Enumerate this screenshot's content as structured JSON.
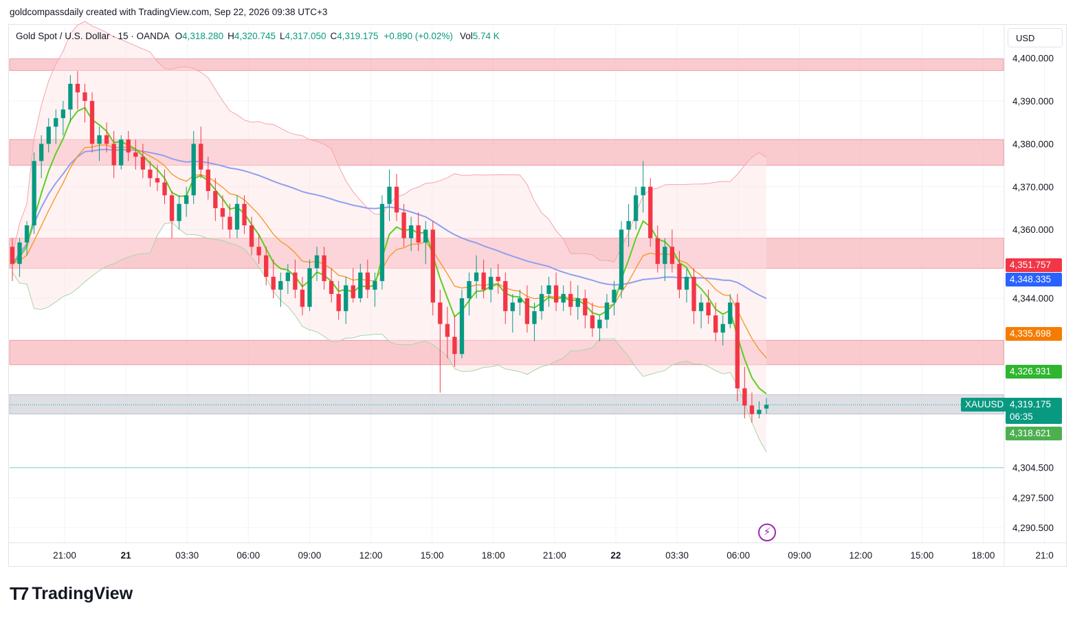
{
  "header": {
    "caption": "goldcompassdaily created with TradingView.com, Sep 22, 2026 09:38 UTC+3"
  },
  "legend": {
    "symbol": "Gold Spot / U.S. Dollar · 15 · OANDA",
    "open_label": "O",
    "open": "4,318.280",
    "high_label": "H",
    "high": "4,320.745",
    "low_label": "L",
    "low": "4,317.050",
    "close_label": "C",
    "close": "4,319.175",
    "change": "+0.890 (+0.02%)",
    "vol_label": "Vol",
    "vol": "5.74 K"
  },
  "currency_button": "USD",
  "footer": {
    "brand": "TradingView"
  },
  "icons": {
    "logo": "tradingview-logo-icon",
    "lightning": "lightning-icon"
  },
  "colors": {
    "up": "#089981",
    "down": "#f23645",
    "ema_fast": "#5ad01b",
    "ema_slow": "#f7931a",
    "sma": "#8f9ff0",
    "zone": "#f7b5bb",
    "price_tag": "#089981"
  },
  "chart_data": {
    "type": "candlestick",
    "timeframe": "15",
    "x_ticks": [
      "21:00",
      "21",
      "03:30",
      "06:00",
      "09:00",
      "12:00",
      "15:00",
      "18:00",
      "21:00",
      "22",
      "03:30",
      "06:00",
      "09:00",
      "12:00",
      "15:00",
      "18:00",
      "21:0"
    ],
    "y_ticks": [
      "4,400.000",
      "4,390.000",
      "4,380.000",
      "4,370.000",
      "4,360.000",
      "4,344.000",
      "4,304.500",
      "4,297.500",
      "4,290.500"
    ],
    "ylim": [
      4287,
      4402
    ],
    "resistance_zones": [
      {
        "low": 4397.1,
        "high": 4399.8
      },
      {
        "low": 4375.0,
        "high": 4381.0
      },
      {
        "low": 4351.0,
        "high": 4358.0
      },
      {
        "low": 4328.5,
        "high": 4334.2
      },
      {
        "low": 4317.0,
        "high": 4321.5
      }
    ],
    "horizontal_line": 4304.5,
    "price_tags": [
      {
        "value": 4351.757,
        "label": "4,351.757",
        "color": "#f23645"
      },
      {
        "value": 4348.335,
        "label": "4,348.335",
        "color": "#2962ff"
      },
      {
        "value": 4335.698,
        "label": "4,335.698",
        "color": "#f57c00"
      },
      {
        "value": 4326.931,
        "label": "4,326.931",
        "color": "#2fb52f"
      },
      {
        "value": 4319.175,
        "label": "4,319.175",
        "color": "#089981",
        "symbol": "XAUUSD",
        "countdown": "06:35"
      },
      {
        "value": 4318.621,
        "label": "4,318.621",
        "color": "#4caf50"
      }
    ],
    "candles": [
      [
        4356.0,
        4358.0,
        4348.0,
        4352.0
      ],
      [
        4352.0,
        4358.0,
        4349.0,
        4357.0
      ],
      [
        4357.0,
        4362.0,
        4354.0,
        4361.0
      ],
      [
        4361.0,
        4378.0,
        4359.0,
        4376.0
      ],
      [
        4376.0,
        4382.0,
        4372.0,
        4380.0
      ],
      [
        4380.0,
        4386.0,
        4378.0,
        4384.0
      ],
      [
        4384.0,
        4388.0,
        4380.0,
        4386.0
      ],
      [
        4386.0,
        4390.0,
        4382.0,
        4388.0
      ],
      [
        4388.0,
        4396.0,
        4385.0,
        4394.0
      ],
      [
        4394.0,
        4397.0,
        4388.0,
        4392.0
      ],
      [
        4392.0,
        4394.0,
        4385.0,
        4390.0
      ],
      [
        4390.0,
        4392.0,
        4378.0,
        4380.0
      ],
      [
        4380.0,
        4384.0,
        4376.0,
        4382.0
      ],
      [
        4382.0,
        4385.0,
        4378.0,
        4380.0
      ],
      [
        4380.0,
        4383.0,
        4372.0,
        4375.0
      ],
      [
        4375.0,
        4382.0,
        4374.0,
        4381.0
      ],
      [
        4381.0,
        4383.0,
        4376.0,
        4378.0
      ],
      [
        4378.0,
        4381.0,
        4374.0,
        4377.0
      ],
      [
        4377.0,
        4380.0,
        4372.0,
        4374.0
      ],
      [
        4374.0,
        4376.0,
        4370.0,
        4372.0
      ],
      [
        4372.0,
        4375.0,
        4369.0,
        4371.0
      ],
      [
        4371.0,
        4374.0,
        4366.0,
        4368.0
      ],
      [
        4368.0,
        4369.0,
        4358.0,
        4362.0
      ],
      [
        4362.0,
        4368.0,
        4360.0,
        4366.0
      ],
      [
        4366.0,
        4370.0,
        4363.0,
        4368.0
      ],
      [
        4368.0,
        4383.0,
        4366.0,
        4380.0
      ],
      [
        4380.0,
        4384.0,
        4372.0,
        4374.0
      ],
      [
        4374.0,
        4377.0,
        4367.0,
        4369.0
      ],
      [
        4369.0,
        4372.0,
        4362.0,
        4365.0
      ],
      [
        4365.0,
        4368.0,
        4360.0,
        4363.0
      ],
      [
        4363.0,
        4366.0,
        4358.0,
        4360.0
      ],
      [
        4360.0,
        4368.0,
        4358.0,
        4366.0
      ],
      [
        4366.0,
        4368.0,
        4359.0,
        4361.0
      ],
      [
        4361.0,
        4363.0,
        4354.0,
        4356.0
      ],
      [
        4356.0,
        4359.0,
        4352.0,
        4354.0
      ],
      [
        4354.0,
        4356.0,
        4347.0,
        4349.0
      ],
      [
        4349.0,
        4353.0,
        4344.0,
        4346.0
      ],
      [
        4346.0,
        4350.0,
        4342.0,
        4348.0
      ],
      [
        4348.0,
        4352.0,
        4345.0,
        4350.0
      ],
      [
        4350.0,
        4353.0,
        4344.0,
        4346.0
      ],
      [
        4346.0,
        4349.0,
        4340.0,
        4342.0
      ],
      [
        4342.0,
        4353.0,
        4341.0,
        4351.0
      ],
      [
        4351.0,
        4356.0,
        4348.0,
        4354.0
      ],
      [
        4354.0,
        4356.0,
        4346.0,
        4348.0
      ],
      [
        4348.0,
        4351.0,
        4343.0,
        4345.0
      ],
      [
        4345.0,
        4348.0,
        4339.0,
        4341.0
      ],
      [
        4341.0,
        4349.0,
        4338.0,
        4347.0
      ],
      [
        4347.0,
        4351.0,
        4343.0,
        4344.0
      ],
      [
        4344.0,
        4352.0,
        4343.0,
        4350.0
      ],
      [
        4350.0,
        4353.0,
        4344.0,
        4346.0
      ],
      [
        4346.0,
        4350.0,
        4342.0,
        4348.0
      ],
      [
        4348.0,
        4368.0,
        4346.0,
        4366.0
      ],
      [
        4366.0,
        4374.0,
        4362.0,
        4370.0
      ],
      [
        4370.0,
        4373.0,
        4362.0,
        4364.0
      ],
      [
        4364.0,
        4366.0,
        4356.0,
        4358.0
      ],
      [
        4358.0,
        4363.0,
        4355.0,
        4361.0
      ],
      [
        4361.0,
        4364.0,
        4355.0,
        4357.0
      ],
      [
        4357.0,
        4362.0,
        4352.0,
        4360.0
      ],
      [
        4360.0,
        4362.0,
        4340.0,
        4343.0
      ],
      [
        4343.0,
        4346.0,
        4322.0,
        4338.0
      ],
      [
        4338.0,
        4342.0,
        4330.0,
        4335.0
      ],
      [
        4335.0,
        4340.0,
        4328.0,
        4331.0
      ],
      [
        4331.0,
        4346.0,
        4330.0,
        4344.0
      ],
      [
        4344.0,
        4350.0,
        4340.0,
        4348.0
      ],
      [
        4348.0,
        4354.0,
        4344.0,
        4350.0
      ],
      [
        4350.0,
        4353.0,
        4344.0,
        4346.0
      ],
      [
        4346.0,
        4351.0,
        4343.0,
        4349.0
      ],
      [
        4349.0,
        4352.0,
        4345.0,
        4348.0
      ],
      [
        4348.0,
        4350.0,
        4338.0,
        4341.0
      ],
      [
        4341.0,
        4345.0,
        4336.0,
        4343.0
      ],
      [
        4343.0,
        4346.0,
        4340.0,
        4344.0
      ],
      [
        4344.0,
        4347.0,
        4336.0,
        4338.0
      ],
      [
        4338.0,
        4343.0,
        4334.0,
        4341.0
      ],
      [
        4341.0,
        4347.0,
        4339.0,
        4345.0
      ],
      [
        4345.0,
        4349.0,
        4342.0,
        4347.0
      ],
      [
        4347.0,
        4350.0,
        4341.0,
        4343.0
      ],
      [
        4343.0,
        4347.0,
        4341.0,
        4345.0
      ],
      [
        4345.0,
        4348.0,
        4340.0,
        4342.0
      ],
      [
        4342.0,
        4347.0,
        4339.0,
        4344.0
      ],
      [
        4344.0,
        4346.0,
        4337.0,
        4340.0
      ],
      [
        4340.0,
        4343.0,
        4335.0,
        4337.0
      ],
      [
        4337.0,
        4340.0,
        4334.0,
        4339.0
      ],
      [
        4339.0,
        4345.0,
        4337.0,
        4343.0
      ],
      [
        4343.0,
        4348.0,
        4340.0,
        4346.0
      ],
      [
        4346.0,
        4362.0,
        4344.0,
        4360.0
      ],
      [
        4360.0,
        4366.0,
        4356.0,
        4362.0
      ],
      [
        4362.0,
        4370.0,
        4360.0,
        4368.0
      ],
      [
        4368.0,
        4376.0,
        4364.0,
        4370.0
      ],
      [
        4370.0,
        4372.0,
        4356.0,
        4358.0
      ],
      [
        4358.0,
        4361.0,
        4350.0,
        4352.0
      ],
      [
        4352.0,
        4358.0,
        4348.0,
        4356.0
      ],
      [
        4356.0,
        4360.0,
        4350.0,
        4352.0
      ],
      [
        4352.0,
        4355.0,
        4344.0,
        4346.0
      ],
      [
        4346.0,
        4351.0,
        4343.0,
        4349.0
      ],
      [
        4349.0,
        4351.0,
        4338.0,
        4341.0
      ],
      [
        4341.0,
        4345.0,
        4337.0,
        4343.0
      ],
      [
        4343.0,
        4346.0,
        4338.0,
        4340.0
      ],
      [
        4340.0,
        4343.0,
        4334.0,
        4336.0
      ],
      [
        4336.0,
        4340.0,
        4333.0,
        4338.0
      ],
      [
        4338.0,
        4345.0,
        4337.0,
        4343.0
      ],
      [
        4343.0,
        4345.0,
        4320.0,
        4323.0
      ],
      [
        4323.0,
        4328.0,
        4316.0,
        4319.0
      ],
      [
        4319.0,
        4322.0,
        4315.0,
        4317.0
      ],
      [
        4317.0,
        4320.0,
        4316.0,
        4318.0
      ],
      [
        4318.28,
        4320.745,
        4317.05,
        4319.175
      ]
    ]
  }
}
